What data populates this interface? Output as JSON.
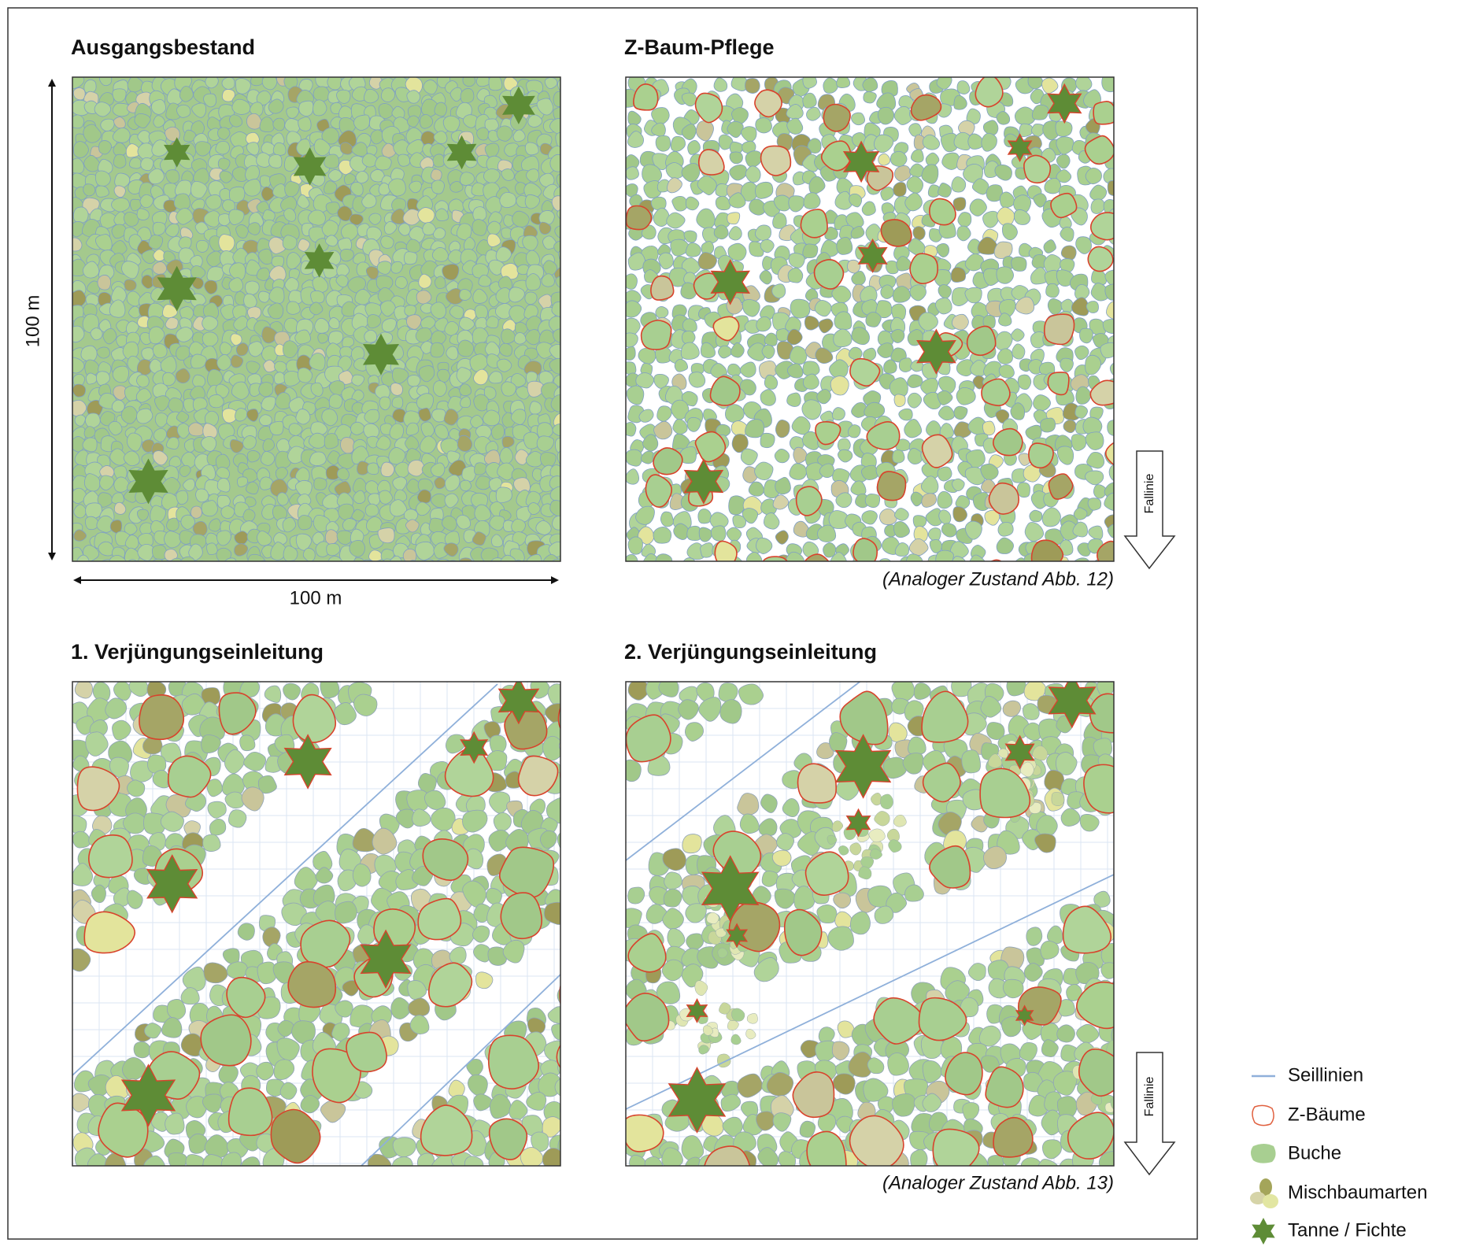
{
  "panels": [
    {
      "title": "Ausgangsbestand"
    },
    {
      "title": "Z-Baum-Pflege",
      "arrow": "Fallinie",
      "caption": "(Analoger Zustand Abb. 12)"
    },
    {
      "title": "1. Verjüngungseinleitung"
    },
    {
      "title": "2. Verjüngungseinleitung",
      "arrow": "Fallinie",
      "caption": "(Analoger Zustand Abb. 13)"
    }
  ],
  "axes": {
    "x_label": "100 m",
    "y_label": "100 m"
  },
  "legend": [
    {
      "label": "Seillinien"
    },
    {
      "label": "Z-Bäume"
    },
    {
      "label": "Buche"
    },
    {
      "label": "Mischbaumarten"
    },
    {
      "label": "Tanne / Fichte"
    }
  ]
}
